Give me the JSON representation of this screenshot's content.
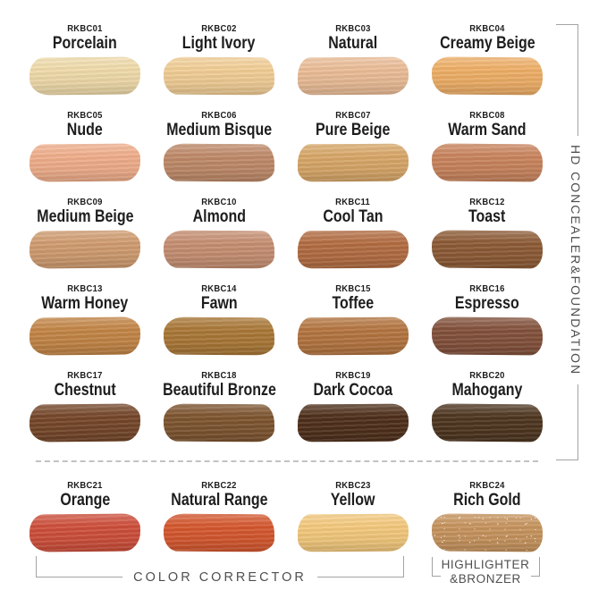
{
  "labels": {
    "vertical_group": "HD CONCEALER&FOUNDATION",
    "color_corrector": "COLOR CORRECTOR",
    "highlighter_line1": "HIGHLIGHTER",
    "highlighter_line2": "&BRONZER"
  },
  "colors": {
    "background": "#ffffff",
    "bracket_line": "#a3a3a3",
    "group_label_text": "#4f4f4f",
    "shade_label_text": "#1d1d1d"
  },
  "shades": [
    {
      "code": "RKBC01",
      "name": "Porcelain",
      "color": "#F0DBAA",
      "group": "HD CONCEALER&FOUNDATION"
    },
    {
      "code": "RKBC02",
      "name": "Light Ivory",
      "color": "#F2CE96",
      "group": "HD CONCEALER&FOUNDATION"
    },
    {
      "code": "RKBC03",
      "name": "Natural",
      "color": "#EBBD97",
      "group": "HD CONCEALER&FOUNDATION"
    },
    {
      "code": "RKBC04",
      "name": "Creamy Beige",
      "color": "#EFAF67",
      "group": "HD CONCEALER&FOUNDATION"
    },
    {
      "code": "RKBC05",
      "name": "Nude",
      "color": "#F0AE8B",
      "group": "HD CONCEALER&FOUNDATION"
    },
    {
      "code": "RKBC06",
      "name": "Medium Bisque",
      "color": "#BF8A69",
      "group": "HD CONCEALER&FOUNDATION"
    },
    {
      "code": "RKBC07",
      "name": "Pure Beige",
      "color": "#D8A768",
      "group": "HD CONCEALER&FOUNDATION"
    },
    {
      "code": "RKBC08",
      "name": "Warm Sand",
      "color": "#C9845D",
      "group": "HD CONCEALER&FOUNDATION"
    },
    {
      "code": "RKBC09",
      "name": "Medium Beige",
      "color": "#D09C70",
      "group": "HD CONCEALER&FOUNDATION"
    },
    {
      "code": "RKBC10",
      "name": "Almond",
      "color": "#C68F72",
      "group": "HD CONCEALER&FOUNDATION"
    },
    {
      "code": "RKBC11",
      "name": "Cool Tan",
      "color": "#B36D42",
      "group": "HD CONCEALER&FOUNDATION"
    },
    {
      "code": "RKBC12",
      "name": "Toast",
      "color": "#8D5B36",
      "group": "HD CONCEALER&FOUNDATION"
    },
    {
      "code": "RKBC13",
      "name": "Warm Honey",
      "color": "#C38546",
      "group": "HD CONCEALER&FOUNDATION"
    },
    {
      "code": "RKBC14",
      "name": "Fawn",
      "color": "#AA7837",
      "group": "HD CONCEALER&FOUNDATION"
    },
    {
      "code": "RKBC15",
      "name": "Toffee",
      "color": "#B47540",
      "group": "HD CONCEALER&FOUNDATION"
    },
    {
      "code": "RKBC16",
      "name": "Espresso",
      "color": "#83513B",
      "group": "HD CONCEALER&FOUNDATION"
    },
    {
      "code": "RKBC17",
      "name": "Chestnut",
      "color": "#75472A",
      "group": "HD CONCEALER&FOUNDATION"
    },
    {
      "code": "RKBC18",
      "name": "Beautiful Bronze",
      "color": "#7E5530",
      "group": "HD CONCEALER&FOUNDATION"
    },
    {
      "code": "RKBC19",
      "name": "Dark Cocoa",
      "color": "#4F301B",
      "group": "HD CONCEALER&FOUNDATION"
    },
    {
      "code": "RKBC20",
      "name": "Mahogany",
      "color": "#4E3620",
      "group": "HD CONCEALER&FOUNDATION"
    },
    {
      "code": "RKBC21",
      "name": "Orange",
      "color": "#CE4F3B",
      "group": "COLOR CORRECTOR"
    },
    {
      "code": "RKBC22",
      "name": "Natural Range",
      "color": "#D5582F",
      "group": "COLOR CORRECTOR"
    },
    {
      "code": "RKBC23",
      "name": "Yellow",
      "color": "#F4C97D",
      "group": "COLOR CORRECTOR"
    },
    {
      "code": "RKBC24",
      "name": "Rich Gold",
      "color": "#C7945E",
      "group": "HIGHLIGHTER&BRONZER",
      "sparkle": true
    }
  ]
}
